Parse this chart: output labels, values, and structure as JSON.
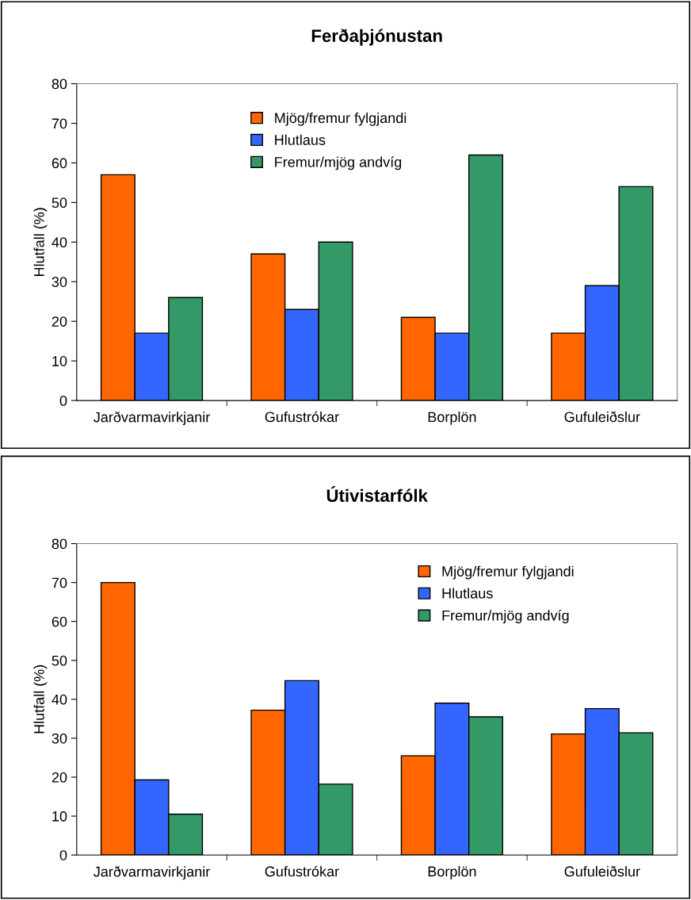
{
  "chart_data": [
    {
      "type": "bar",
      "title": "Ferðaþjónustan",
      "ylabel": "Hlutfall (%)",
      "categories": [
        "Jarðvarmavirkjanir",
        "Gufustrókar",
        "Borplön",
        "Gufuleiðslur"
      ],
      "series": [
        {
          "name": "Mjög/fremur fylgjandi",
          "color": "#ff6600",
          "values": [
            57,
            37,
            21,
            17
          ]
        },
        {
          "name": "Hlutlaus",
          "color": "#3366ff",
          "values": [
            17,
            23,
            17,
            29
          ]
        },
        {
          "name": "Fremur/mjög andvíg",
          "color": "#339966",
          "values": [
            26,
            40,
            62,
            54
          ]
        }
      ],
      "ylim": [
        0,
        80
      ],
      "yticks": [
        0,
        10,
        20,
        30,
        40,
        50,
        60,
        70,
        80
      ],
      "grid": false,
      "legend": "top"
    },
    {
      "type": "bar",
      "title": "Útivistarfólk",
      "ylabel": "Hlutfall (%)",
      "categories": [
        "Jarðvarmavirkjanir",
        "Gufustrókar",
        "Borplön",
        "Gufuleiðslur"
      ],
      "series": [
        {
          "name": "Mjög/fremur fylgjandi",
          "color": "#ff6600",
          "values": [
            70,
            37.2,
            25.5,
            31.1
          ]
        },
        {
          "name": "Hlutlaus",
          "color": "#3366ff",
          "values": [
            19.3,
            44.8,
            39.0,
            37.6
          ]
        },
        {
          "name": "Fremur/mjög andvíg",
          "color": "#339966",
          "values": [
            10.5,
            18.2,
            35.5,
            31.4
          ]
        }
      ],
      "ylim": [
        0,
        80
      ],
      "yticks": [
        0,
        10,
        20,
        30,
        40,
        50,
        60,
        70,
        80
      ],
      "grid": false,
      "legend": "top right"
    }
  ]
}
